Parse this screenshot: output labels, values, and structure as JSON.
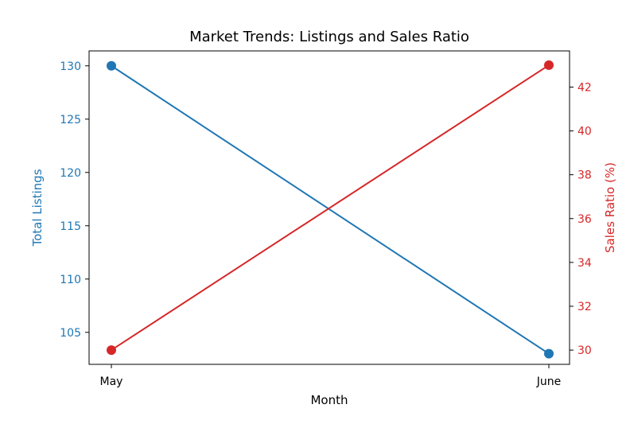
{
  "chart_data": {
    "type": "line",
    "title": "Market Trends: Listings and Sales Ratio",
    "xlabel": "Month",
    "categories": [
      "May",
      "June"
    ],
    "series": [
      {
        "axis": "left",
        "values": [
          130,
          103
        ],
        "color": "#1f77b4",
        "ylabel": "Total Listings",
        "ylim": [
          102,
          131.4
        ],
        "yticks": [
          105,
          110,
          115,
          120,
          125,
          130
        ]
      },
      {
        "axis": "right",
        "values": [
          30,
          43
        ],
        "color": "#d62728",
        "ylabel": "Sales Ratio (%)",
        "ylim": [
          29.35,
          43.65
        ],
        "yticks": [
          30,
          32,
          34,
          36,
          38,
          40,
          42
        ]
      }
    ],
    "grid": false,
    "legend": "none"
  }
}
